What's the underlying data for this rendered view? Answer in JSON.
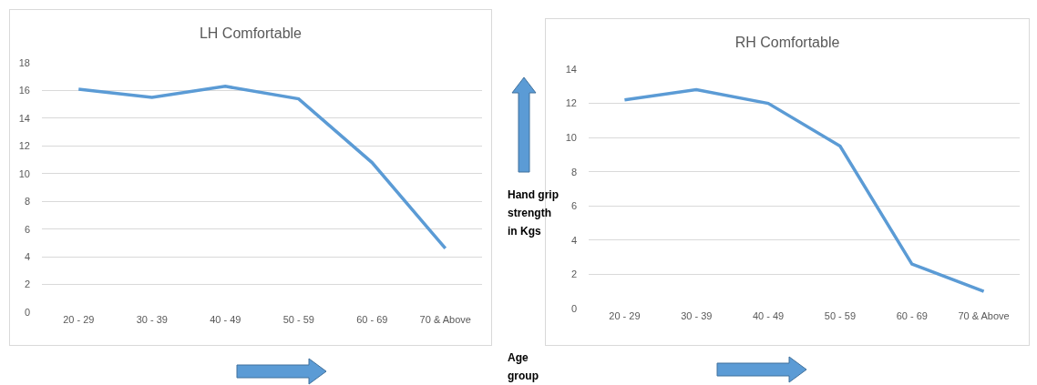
{
  "chart_data": [
    {
      "type": "line",
      "title": "LH Comfortable",
      "categories": [
        "20 - 29",
        "30 - 39",
        "40 - 49",
        "50 - 59",
        "60 - 69",
        "70 & Above"
      ],
      "values": [
        16.1,
        15.5,
        16.3,
        15.4,
        10.8,
        4.6
      ],
      "color": "#5b9bd5",
      "ylim": [
        0,
        18
      ],
      "yticks": [
        0,
        2,
        4,
        6,
        8,
        10,
        12,
        14,
        16,
        18
      ],
      "grid": "y",
      "marker": "none",
      "annotations": [
        "Hand grip strength in Kgs",
        "Age group"
      ]
    },
    {
      "type": "line",
      "title": "RH Comfortable",
      "categories": [
        "20 - 29",
        "30 - 39",
        "40 - 49",
        "50 - 59",
        "60 - 69",
        "70 & Above"
      ],
      "values": [
        12.2,
        12.8,
        12.0,
        9.5,
        2.6,
        1.0
      ],
      "color": "#5b9bd5",
      "ylim": [
        0,
        14
      ],
      "yticks": [
        0,
        2,
        4,
        6,
        8,
        10,
        12,
        14
      ],
      "grid": "y",
      "marker": "none"
    }
  ]
}
